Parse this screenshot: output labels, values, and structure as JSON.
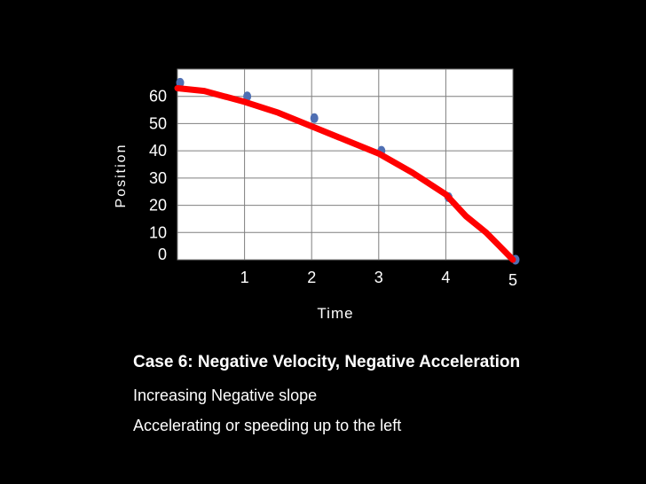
{
  "chart_data": {
    "type": "line",
    "xlabel": "Time",
    "ylabel": "Position",
    "xlim": [
      0,
      5
    ],
    "ylim": [
      0,
      70
    ],
    "x_ticks": [
      1,
      2,
      3,
      4,
      5
    ],
    "y_ticks": [
      0,
      10,
      20,
      30,
      40,
      50,
      60
    ],
    "grid": true,
    "legend": "none",
    "series": [
      {
        "type": "scatter",
        "color": "#4f6fb3",
        "x": [
          0,
          1,
          2,
          3,
          4,
          5
        ],
        "y": [
          65,
          60,
          52,
          40,
          23,
          0
        ]
      },
      {
        "type": "line",
        "color": "#ff0000",
        "x": [
          0,
          0.4,
          1,
          1.5,
          2,
          2.5,
          3,
          3.5,
          4,
          4.3,
          4.6,
          4.8,
          5
        ],
        "y": [
          63,
          62,
          58,
          54,
          49,
          44,
          39,
          32,
          24,
          16,
          10,
          5,
          0
        ]
      }
    ]
  },
  "text": {
    "title": "Case 6: Negative Velocity, Negative Acceleration",
    "line1": "Increasing Negative slope",
    "line2": "Accelerating or speeding up to the left"
  }
}
